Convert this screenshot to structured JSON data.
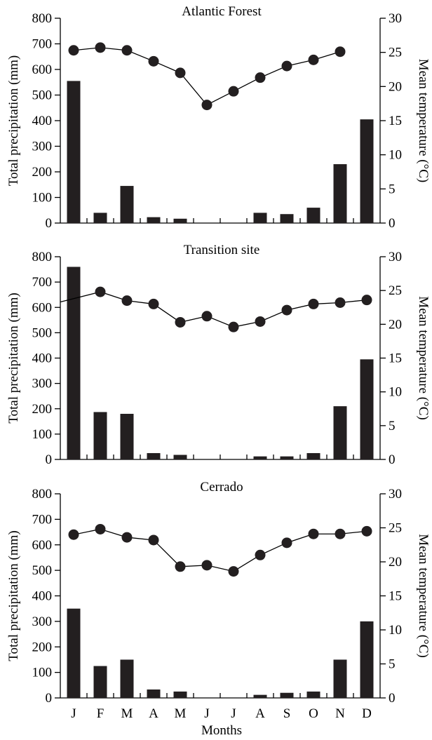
{
  "figure": {
    "xlabel": "Months"
  },
  "chart_data": [
    {
      "type": "bar",
      "title": "Atlantic Forest",
      "categories": [
        "J",
        "F",
        "M",
        "A",
        "M",
        "J",
        "J",
        "A",
        "S",
        "O",
        "N",
        "D"
      ],
      "ylabel": "Total precipitation (mm)",
      "y2label": "Mean temperature (°C)",
      "ylim": [
        0,
        800
      ],
      "y2lim": [
        0,
        30
      ],
      "yticks": [
        0,
        100,
        200,
        300,
        400,
        500,
        600,
        700,
        800
      ],
      "y2ticks": [
        0,
        5,
        10,
        15,
        20,
        25,
        30
      ],
      "series": [
        {
          "kind": "bar",
          "axis": "left",
          "values": [
            555,
            40,
            145,
            23,
            17,
            0,
            0,
            40,
            35,
            60,
            230,
            405
          ]
        },
        {
          "kind": "line",
          "axis": "right",
          "values": [
            25.3,
            25.7,
            25.3,
            23.7,
            22.0,
            17.3,
            19.3,
            21.3,
            23.0,
            23.9,
            25.1,
            null
          ]
        }
      ]
    },
    {
      "type": "bar",
      "title": "Transition site",
      "categories": [
        "J",
        "F",
        "M",
        "A",
        "M",
        "J",
        "J",
        "A",
        "S",
        "O",
        "N",
        "D"
      ],
      "ylabel": "Total precipitation (mm)",
      "y2label": "Mean temperature (°C)",
      "ylim": [
        0,
        800
      ],
      "y2lim": [
        0,
        30
      ],
      "yticks": [
        0,
        100,
        200,
        300,
        400,
        500,
        600,
        700,
        800
      ],
      "y2ticks": [
        0,
        5,
        10,
        15,
        20,
        25,
        30
      ],
      "series": [
        {
          "kind": "bar",
          "axis": "left",
          "values": [
            760,
            187,
            180,
            25,
            18,
            0,
            0,
            12,
            12,
            25,
            210,
            395
          ]
        },
        {
          "kind": "line",
          "axis": "right",
          "starts_at_axis": 23.3,
          "values": [
            null,
            24.8,
            23.5,
            23.0,
            20.3,
            21.2,
            19.6,
            20.4,
            22.1,
            23.0,
            23.2,
            23.6
          ]
        }
      ]
    },
    {
      "type": "bar",
      "title": "Cerrado",
      "categories": [
        "J",
        "F",
        "M",
        "A",
        "M",
        "J",
        "J",
        "A",
        "S",
        "O",
        "N",
        "D"
      ],
      "ylabel": "Total precipitation (mm)",
      "y2label": "Mean temperature (°C)",
      "ylim": [
        0,
        800
      ],
      "y2lim": [
        0,
        30
      ],
      "yticks": [
        0,
        100,
        200,
        300,
        400,
        500,
        600,
        700,
        800
      ],
      "y2ticks": [
        0,
        5,
        10,
        15,
        20,
        25,
        30
      ],
      "series": [
        {
          "kind": "bar",
          "axis": "left",
          "values": [
            350,
            125,
            150,
            33,
            25,
            0,
            0,
            12,
            20,
            25,
            150,
            300
          ]
        },
        {
          "kind": "line",
          "axis": "right",
          "values": [
            24.0,
            24.8,
            23.6,
            23.2,
            19.3,
            19.5,
            18.6,
            21.0,
            22.8,
            24.1,
            24.1,
            24.5
          ]
        }
      ]
    }
  ]
}
